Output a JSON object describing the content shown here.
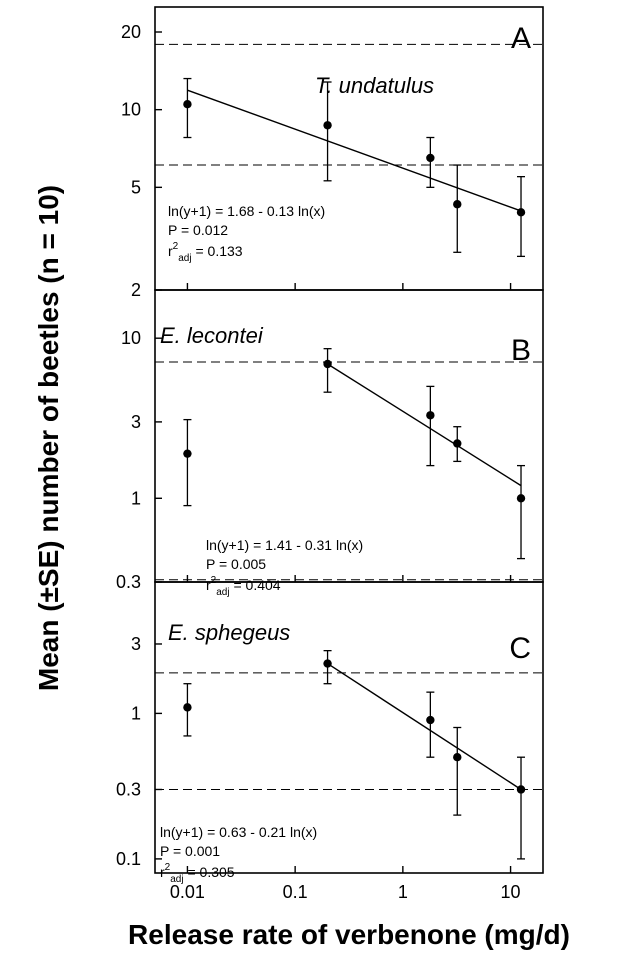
{
  "chart_data": {
    "type": "scatter",
    "xlabel": "Release rate of verbenone (mg/d)",
    "ylabel": "Mean (±SE) number of beetles (n = 10)",
    "xscale": "log",
    "yscale": "log",
    "x_ticks": [
      "0.01",
      "0.1",
      "1",
      "10"
    ],
    "panels": [
      {
        "letter": "A",
        "species": "T. undatulus",
        "ylim": [
          2,
          25
        ],
        "y_ticks": [
          "2",
          "5",
          "10",
          "20"
        ],
        "points": [
          {
            "x": 0.01,
            "y": 10.5,
            "err_low": 7.8,
            "err_high": 13.2
          },
          {
            "x": 0.2,
            "y": 8.7,
            "err_low": 5.3,
            "err_high": 12.8
          },
          {
            "x": 1.8,
            "y": 6.5,
            "err_low": 5.0,
            "err_high": 7.8
          },
          {
            "x": 3.2,
            "y": 4.3,
            "err_low": 2.8,
            "err_high": 6.1
          },
          {
            "x": 12.5,
            "y": 4.0,
            "err_low": 2.7,
            "err_high": 5.5
          }
        ],
        "fit_line": {
          "x": [
            0.01,
            12.5
          ],
          "y": [
            11.9,
            4.05
          ]
        },
        "reference_lines": [
          17.9,
          6.1
        ],
        "equation": "ln(y+1) = 1.68 - 0.13 ln(x)",
        "p_value": "P = 0.012",
        "r2_label": "r",
        "r2_sup": "2",
        "r2_sub": "adj",
        "r2_value": " = 0.133"
      },
      {
        "letter": "B",
        "species": "E. lecontei",
        "ylim": [
          0.3,
          20
        ],
        "y_ticks": [
          "0.3",
          "1",
          "3",
          "10"
        ],
        "points": [
          {
            "x": 0.01,
            "y": 1.9,
            "err_low": 0.9,
            "err_high": 3.1
          },
          {
            "x": 0.2,
            "y": 6.9,
            "err_low": 4.6,
            "err_high": 8.6
          },
          {
            "x": 1.8,
            "y": 3.3,
            "err_low": 1.6,
            "err_high": 5.0
          },
          {
            "x": 3.2,
            "y": 2.2,
            "err_low": 1.7,
            "err_high": 2.8
          },
          {
            "x": 12.5,
            "y": 1.0,
            "err_low": 0.42,
            "err_high": 1.6
          }
        ],
        "fit_line": {
          "x": [
            0.2,
            12.5
          ],
          "y": [
            6.9,
            1.2
          ]
        },
        "reference_lines": [
          7.1,
          0.31
        ],
        "equation": "ln(y+1) = 1.41 - 0.31 ln(x)",
        "p_value": "P = 0.005",
        "r2_label": "r",
        "r2_sup": "2",
        "r2_sub": "adj",
        "r2_value": " = 0.404"
      },
      {
        "letter": "C",
        "species": "E. sphegeus",
        "ylim": [
          0.08,
          8
        ],
        "y_ticks": [
          "0.1",
          "0.3",
          "1",
          "3"
        ],
        "points": [
          {
            "x": 0.01,
            "y": 1.1,
            "err_low": 0.7,
            "err_high": 1.6
          },
          {
            "x": 0.2,
            "y": 2.2,
            "err_low": 1.6,
            "err_high": 2.7
          },
          {
            "x": 1.8,
            "y": 0.9,
            "err_low": 0.5,
            "err_high": 1.4
          },
          {
            "x": 3.2,
            "y": 0.5,
            "err_low": 0.2,
            "err_high": 0.8
          },
          {
            "x": 12.5,
            "y": 0.3,
            "err_low": 0.1,
            "err_high": 0.5
          }
        ],
        "fit_line": {
          "x": [
            0.2,
            12.5
          ],
          "y": [
            2.2,
            0.3
          ]
        },
        "reference_lines": [
          1.9,
          0.3
        ],
        "equation": "ln(y+1) = 0.63 - 0.21 ln(x)",
        "p_value": "P = 0.001",
        "r2_label": "r",
        "r2_sup": "2",
        "r2_sub": "adj",
        "r2_value": " = 0.305"
      }
    ]
  }
}
